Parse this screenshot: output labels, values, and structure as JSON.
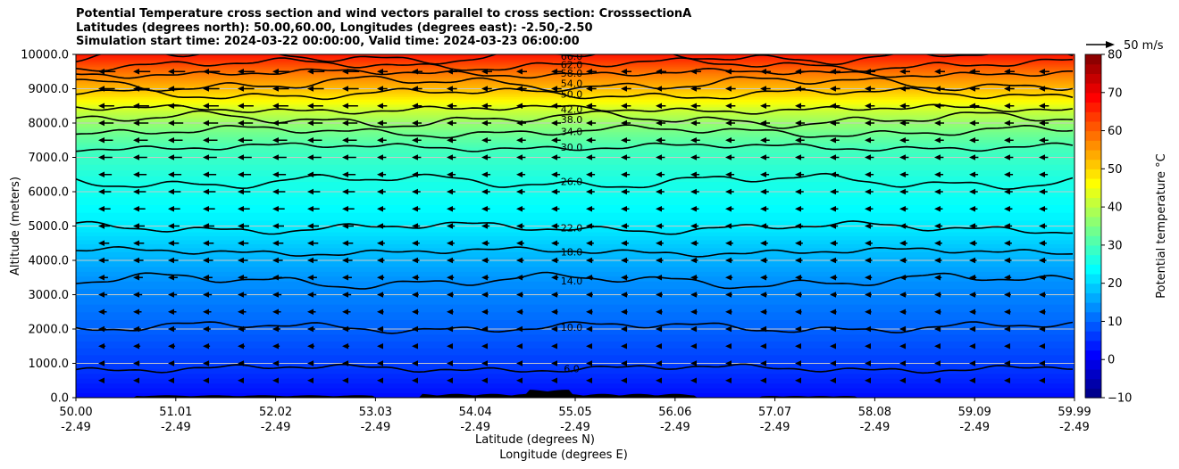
{
  "title_lines": [
    "Potential Temperature cross section and wind vectors parallel to cross section: CrosssectionA",
    "Latitudes (degrees north): 50.00,60.00, Longitudes (degrees east): -2.50,-2.50",
    "Simulation start time: 2024-03-22 00:00:00, Valid time: 2024-03-23 06:00:00"
  ],
  "chart_data": {
    "type": "heatmap",
    "title": "Potential Temperature cross section and wind vectors parallel to cross section: CrosssectionA",
    "ylabel": "Altitude (meters)",
    "xlabel_line1": "Latitude (degrees N)",
    "xlabel_line2": "Longitude (degrees E)",
    "ylim": [
      0,
      10000
    ],
    "yticks": [
      "0.0",
      "1000.0",
      "2000.0",
      "3000.0",
      "4000.0",
      "5000.0",
      "6000.0",
      "7000.0",
      "8000.0",
      "9000.0",
      "10000.0"
    ],
    "ytick_values": [
      0,
      1000,
      2000,
      3000,
      4000,
      5000,
      6000,
      7000,
      8000,
      9000,
      10000
    ],
    "xticks_lat": [
      "50.00",
      "51.01",
      "52.02",
      "53.03",
      "54.04",
      "55.05",
      "56.06",
      "57.07",
      "58.08",
      "59.09",
      "59.99"
    ],
    "xticks_lon": [
      "-2.49",
      "-2.49",
      "-2.49",
      "-2.49",
      "-2.49",
      "-2.49",
      "-2.49",
      "-2.49",
      "-2.49",
      "-2.49",
      "-2.49"
    ],
    "horizontal_grid": true,
    "colorbar": {
      "label": "Potential temperature $^\\circ$C",
      "range": [
        -10,
        80
      ],
      "ticks": [
        "−10",
        "0",
        "10",
        "20",
        "30",
        "40",
        "50",
        "60",
        "70",
        "80"
      ],
      "tick_values": [
        -10,
        0,
        10,
        20,
        30,
        40,
        50,
        60,
        70,
        80
      ],
      "colormap": "jet"
    },
    "contours": [
      {
        "level": 6,
        "label": "6.0",
        "alt": 850
      },
      {
        "level": 10,
        "label": "10.0",
        "alt": 2050
      },
      {
        "level": 14,
        "label": "14.0",
        "alt": 3400
      },
      {
        "level": 18,
        "label": "18.0",
        "alt": 4250
      },
      {
        "level": 22,
        "label": "22.0",
        "alt": 4950
      },
      {
        "level": 26,
        "label": "26.0",
        "alt": 6300
      },
      {
        "level": 30,
        "label": "30.0",
        "alt": 7300
      },
      {
        "level": 34,
        "label": "34.0",
        "alt": 7750
      },
      {
        "level": 38,
        "label": "38.0",
        "alt": 8100
      },
      {
        "level": 42,
        "label": "42.0",
        "alt": 8400
      },
      {
        "level": 50,
        "label": "50.0",
        "alt": 8850
      },
      {
        "level": 54,
        "label": "54.0",
        "alt": 9150
      },
      {
        "level": 58,
        "label": "58.0",
        "alt": 9450
      },
      {
        "level": 62,
        "label": "62.0",
        "alt": 9700
      },
      {
        "level": 66,
        "label": "66.0",
        "alt": 9950
      }
    ],
    "wind_reference": {
      "label": "50 m/s",
      "speed": 50
    },
    "wind_direction": "toward south (left)",
    "terrain": "black orography along the surface, peaks near 55.0 degrees N"
  }
}
